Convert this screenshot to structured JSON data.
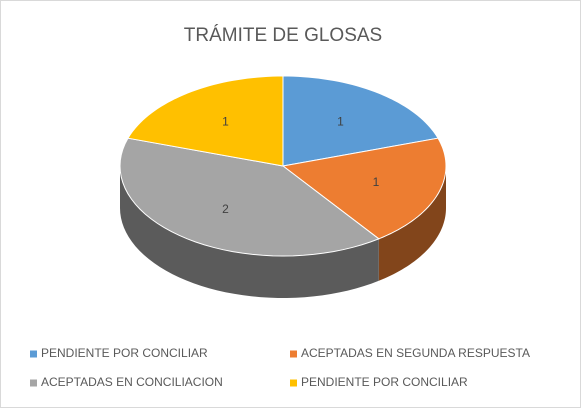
{
  "chart_data": {
    "type": "pie",
    "title": "TRÁMITE DE GLOSAS",
    "categories": [
      "PENDIENTE POR CONCILIAR",
      "ACEPTADAS EN SEGUNDA RESPUESTA",
      "ACEPTADAS EN CONCILIACION",
      "PENDIENTE POR CONCILIAR"
    ],
    "values": [
      1,
      1,
      2,
      1
    ],
    "colors": [
      "#5b9bd5",
      "#ed7d31",
      "#a5a5a5",
      "#ffc000"
    ],
    "legend": "bottom"
  }
}
